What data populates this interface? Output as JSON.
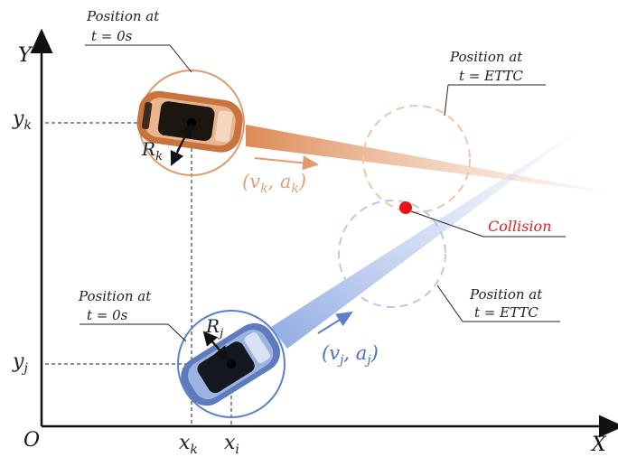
{
  "axes": {
    "y_label": "Y",
    "x_label": "X",
    "origin_label": "O"
  },
  "vehicle_k": {
    "start_label_line1": "Position at",
    "start_label_line2": "t = 0s",
    "ettc_label_line1": "Position at",
    "ettc_label_line2": "t = ETTC",
    "radius_label": "R",
    "radius_sub": "k",
    "y_label": "y",
    "y_sub": "k",
    "x_label": "x",
    "x_sub": "k",
    "kinematics": "(v",
    "kin_v_sub": "k",
    "kin_mid": ", a",
    "kin_a_sub": "k",
    "kin_end": ")",
    "color": "#e39a6c"
  },
  "vehicle_j": {
    "start_label_line1": "Position at",
    "start_label_line2": "t = 0s",
    "ettc_label_line1": "Position at",
    "ettc_label_line2": "t = ETTC",
    "radius_label": "R",
    "radius_sub": "j",
    "y_label": "y",
    "y_sub": "j",
    "x_label": "x",
    "x_sub": "i",
    "kinematics": "(v",
    "kin_v_sub": "j",
    "kin_mid": ", a",
    "kin_a_sub": "j",
    "kin_end": ")",
    "color": "#5b7fd0"
  },
  "collision": {
    "label": "Collision",
    "color": "#e8141a"
  }
}
